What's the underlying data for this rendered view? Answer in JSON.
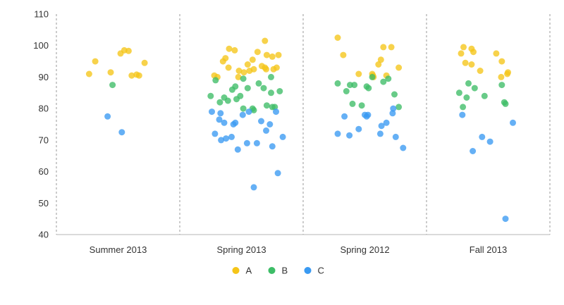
{
  "chart_data": {
    "type": "scatter",
    "title": "",
    "xlabel": "",
    "ylabel": "",
    "categories": [
      "Summer 2013",
      "Spring 2013",
      "Spring 2012",
      "Fall 2013"
    ],
    "ylim": [
      40,
      110
    ],
    "yticks": [
      40,
      50,
      60,
      70,
      80,
      90,
      100,
      110
    ],
    "grid": false,
    "legend": "bottom-center",
    "series": [
      {
        "name": "A",
        "color": "#f5c518",
        "points": [
          {
            "category": "Summer 2013",
            "offset": -0.47,
            "y": 91.0
          },
          {
            "category": "Summer 2013",
            "offset": -0.37,
            "y": 95.0
          },
          {
            "category": "Summer 2013",
            "offset": -0.12,
            "y": 91.5
          },
          {
            "category": "Summer 2013",
            "offset": 0.04,
            "y": 97.5
          },
          {
            "category": "Summer 2013",
            "offset": 0.1,
            "y": 98.5
          },
          {
            "category": "Summer 2013",
            "offset": 0.17,
            "y": 98.3
          },
          {
            "category": "Summer 2013",
            "offset": 0.22,
            "y": 90.5
          },
          {
            "category": "Summer 2013",
            "offset": 0.3,
            "y": 90.8
          },
          {
            "category": "Summer 2013",
            "offset": 0.34,
            "y": 90.5
          },
          {
            "category": "Summer 2013",
            "offset": 0.43,
            "y": 94.5
          },
          {
            "category": "Spring 2013",
            "offset": -0.44,
            "y": 90.5
          },
          {
            "category": "Spring 2013",
            "offset": -0.39,
            "y": 90.0
          },
          {
            "category": "Spring 2013",
            "offset": -0.3,
            "y": 95.0
          },
          {
            "category": "Spring 2013",
            "offset": -0.26,
            "y": 96.0
          },
          {
            "category": "Spring 2013",
            "offset": -0.21,
            "y": 93.0
          },
          {
            "category": "Spring 2013",
            "offset": -0.2,
            "y": 99.0
          },
          {
            "category": "Spring 2013",
            "offset": -0.11,
            "y": 98.5
          },
          {
            "category": "Spring 2013",
            "offset": -0.04,
            "y": 92.0
          },
          {
            "category": "Spring 2013",
            "offset": -0.05,
            "y": 90.0
          },
          {
            "category": "Spring 2013",
            "offset": 0.04,
            "y": 91.5
          },
          {
            "category": "Spring 2013",
            "offset": 0.1,
            "y": 94.0
          },
          {
            "category": "Spring 2013",
            "offset": 0.13,
            "y": 92.0
          },
          {
            "category": "Spring 2013",
            "offset": 0.18,
            "y": 95.5
          },
          {
            "category": "Spring 2013",
            "offset": 0.2,
            "y": 92.5
          },
          {
            "category": "Spring 2013",
            "offset": 0.26,
            "y": 98.0
          },
          {
            "category": "Spring 2013",
            "offset": 0.33,
            "y": 93.5
          },
          {
            "category": "Spring 2013",
            "offset": 0.38,
            "y": 101.5
          },
          {
            "category": "Spring 2013",
            "offset": 0.38,
            "y": 93.0
          },
          {
            "category": "Spring 2013",
            "offset": 0.41,
            "y": 97.0
          },
          {
            "category": "Spring 2013",
            "offset": 0.4,
            "y": 92.5
          },
          {
            "category": "Spring 2013",
            "offset": 0.5,
            "y": 96.5
          },
          {
            "category": "Spring 2013",
            "offset": 0.52,
            "y": 92.5
          },
          {
            "category": "Spring 2013",
            "offset": 0.57,
            "y": 93.0
          },
          {
            "category": "Spring 2013",
            "offset": 0.6,
            "y": 97.0
          },
          {
            "category": "Spring 2012",
            "offset": -0.44,
            "y": 102.5
          },
          {
            "category": "Spring 2012",
            "offset": -0.35,
            "y": 97.0
          },
          {
            "category": "Spring 2012",
            "offset": -0.1,
            "y": 91.0
          },
          {
            "category": "Spring 2012",
            "offset": 0.12,
            "y": 91.0
          },
          {
            "category": "Spring 2012",
            "offset": 0.13,
            "y": 90.5
          },
          {
            "category": "Spring 2012",
            "offset": 0.14,
            "y": 90.0
          },
          {
            "category": "Spring 2012",
            "offset": 0.22,
            "y": 94.0
          },
          {
            "category": "Spring 2012",
            "offset": 0.26,
            "y": 95.5
          },
          {
            "category": "Spring 2012",
            "offset": 0.3,
            "y": 99.5
          },
          {
            "category": "Spring 2012",
            "offset": 0.35,
            "y": 90.5
          },
          {
            "category": "Spring 2012",
            "offset": 0.43,
            "y": 99.5
          },
          {
            "category": "Spring 2012",
            "offset": 0.55,
            "y": 93.0
          },
          {
            "category": "Fall 2013",
            "offset": -0.44,
            "y": 97.5
          },
          {
            "category": "Fall 2013",
            "offset": -0.4,
            "y": 99.5
          },
          {
            "category": "Fall 2013",
            "offset": -0.37,
            "y": 94.5
          },
          {
            "category": "Fall 2013",
            "offset": -0.27,
            "y": 99.0
          },
          {
            "category": "Fall 2013",
            "offset": -0.27,
            "y": 94.0
          },
          {
            "category": "Fall 2013",
            "offset": -0.24,
            "y": 98.0
          },
          {
            "category": "Fall 2013",
            "offset": -0.13,
            "y": 92.0
          },
          {
            "category": "Fall 2013",
            "offset": 0.13,
            "y": 97.5
          },
          {
            "category": "Fall 2013",
            "offset": 0.22,
            "y": 95.0
          },
          {
            "category": "Fall 2013",
            "offset": 0.21,
            "y": 90.0
          },
          {
            "category": "Fall 2013",
            "offset": 0.31,
            "y": 91.0
          },
          {
            "category": "Fall 2013",
            "offset": 0.32,
            "y": 91.5
          }
        ]
      },
      {
        "name": "B",
        "color": "#3dbd67",
        "points": [
          {
            "category": "Summer 2013",
            "offset": -0.09,
            "y": 87.5
          },
          {
            "category": "Spring 2013",
            "offset": -0.5,
            "y": 84.0
          },
          {
            "category": "Spring 2013",
            "offset": -0.42,
            "y": 89.0
          },
          {
            "category": "Spring 2013",
            "offset": -0.35,
            "y": 82.0
          },
          {
            "category": "Spring 2013",
            "offset": -0.28,
            "y": 83.5
          },
          {
            "category": "Spring 2013",
            "offset": -0.22,
            "y": 82.5
          },
          {
            "category": "Spring 2013",
            "offset": -0.15,
            "y": 86.0
          },
          {
            "category": "Spring 2013",
            "offset": -0.1,
            "y": 87.0
          },
          {
            "category": "Spring 2013",
            "offset": -0.08,
            "y": 83.0
          },
          {
            "category": "Spring 2013",
            "offset": -0.02,
            "y": 84.0
          },
          {
            "category": "Spring 2013",
            "offset": 0.03,
            "y": 80.0
          },
          {
            "category": "Spring 2013",
            "offset": 0.03,
            "y": 89.5
          },
          {
            "category": "Spring 2013",
            "offset": 0.1,
            "y": 86.5
          },
          {
            "category": "Spring 2013",
            "offset": 0.18,
            "y": 80.0
          },
          {
            "category": "Spring 2013",
            "offset": 0.2,
            "y": 79.5
          },
          {
            "category": "Spring 2013",
            "offset": 0.28,
            "y": 88.0
          },
          {
            "category": "Spring 2013",
            "offset": 0.36,
            "y": 86.5
          },
          {
            "category": "Spring 2013",
            "offset": 0.41,
            "y": 81.0
          },
          {
            "category": "Spring 2013",
            "offset": 0.48,
            "y": 90.0
          },
          {
            "category": "Spring 2013",
            "offset": 0.48,
            "y": 85.0
          },
          {
            "category": "Spring 2013",
            "offset": 0.5,
            "y": 80.5
          },
          {
            "category": "Spring 2013",
            "offset": 0.54,
            "y": 80.5
          },
          {
            "category": "Spring 2013",
            "offset": 0.62,
            "y": 85.5
          },
          {
            "category": "Spring 2012",
            "offset": -0.44,
            "y": 88.0
          },
          {
            "category": "Spring 2012",
            "offset": -0.3,
            "y": 85.5
          },
          {
            "category": "Spring 2012",
            "offset": -0.24,
            "y": 87.5
          },
          {
            "category": "Spring 2012",
            "offset": -0.2,
            "y": 81.5
          },
          {
            "category": "Spring 2012",
            "offset": -0.17,
            "y": 87.5
          },
          {
            "category": "Spring 2012",
            "offset": -0.05,
            "y": 81.0
          },
          {
            "category": "Spring 2012",
            "offset": 0.03,
            "y": 87.0
          },
          {
            "category": "Spring 2012",
            "offset": 0.06,
            "y": 86.5
          },
          {
            "category": "Spring 2012",
            "offset": 0.12,
            "y": 90.0
          },
          {
            "category": "Spring 2012",
            "offset": 0.3,
            "y": 88.5
          },
          {
            "category": "Spring 2012",
            "offset": 0.38,
            "y": 89.5
          },
          {
            "category": "Spring 2012",
            "offset": 0.48,
            "y": 84.5
          },
          {
            "category": "Spring 2012",
            "offset": 0.55,
            "y": 80.5
          },
          {
            "category": "Fall 2013",
            "offset": -0.47,
            "y": 85.0
          },
          {
            "category": "Fall 2013",
            "offset": -0.41,
            "y": 80.5
          },
          {
            "category": "Fall 2013",
            "offset": -0.35,
            "y": 83.5
          },
          {
            "category": "Fall 2013",
            "offset": -0.32,
            "y": 88.0
          },
          {
            "category": "Fall 2013",
            "offset": -0.22,
            "y": 86.5
          },
          {
            "category": "Fall 2013",
            "offset": -0.06,
            "y": 84.0
          },
          {
            "category": "Fall 2013",
            "offset": 0.22,
            "y": 87.5
          },
          {
            "category": "Fall 2013",
            "offset": 0.26,
            "y": 82.0
          },
          {
            "category": "Fall 2013",
            "offset": 0.28,
            "y": 81.5
          }
        ]
      },
      {
        "name": "C",
        "color": "#3a9af2",
        "points": [
          {
            "category": "Summer 2013",
            "offset": -0.17,
            "y": 77.5
          },
          {
            "category": "Summer 2013",
            "offset": 0.06,
            "y": 72.5
          },
          {
            "category": "Spring 2013",
            "offset": -0.48,
            "y": 79.0
          },
          {
            "category": "Spring 2013",
            "offset": -0.43,
            "y": 72.0
          },
          {
            "category": "Spring 2013",
            "offset": -0.34,
            "y": 78.5
          },
          {
            "category": "Spring 2013",
            "offset": -0.36,
            "y": 76.5
          },
          {
            "category": "Spring 2013",
            "offset": -0.33,
            "y": 70.0
          },
          {
            "category": "Spring 2013",
            "offset": -0.28,
            "y": 75.5
          },
          {
            "category": "Spring 2013",
            "offset": -0.25,
            "y": 70.5
          },
          {
            "category": "Spring 2013",
            "offset": -0.16,
            "y": 71.0
          },
          {
            "category": "Spring 2013",
            "offset": -0.13,
            "y": 75.0
          },
          {
            "category": "Spring 2013",
            "offset": -0.1,
            "y": 75.5
          },
          {
            "category": "Spring 2013",
            "offset": -0.06,
            "y": 67.0
          },
          {
            "category": "Spring 2013",
            "offset": 0.02,
            "y": 78.0
          },
          {
            "category": "Spring 2013",
            "offset": 0.09,
            "y": 69.0
          },
          {
            "category": "Spring 2013",
            "offset": 0.12,
            "y": 79.0
          },
          {
            "category": "Spring 2013",
            "offset": 0.2,
            "y": 55.0
          },
          {
            "category": "Spring 2013",
            "offset": 0.25,
            "y": 69.0
          },
          {
            "category": "Spring 2013",
            "offset": 0.32,
            "y": 76.0
          },
          {
            "category": "Spring 2013",
            "offset": 0.4,
            "y": 73.0
          },
          {
            "category": "Spring 2013",
            "offset": 0.46,
            "y": 75.0
          },
          {
            "category": "Spring 2013",
            "offset": 0.5,
            "y": 68.0
          },
          {
            "category": "Spring 2013",
            "offset": 0.56,
            "y": 79.0
          },
          {
            "category": "Spring 2013",
            "offset": 0.59,
            "y": 59.5
          },
          {
            "category": "Spring 2013",
            "offset": 0.67,
            "y": 71.0
          },
          {
            "category": "Spring 2012",
            "offset": -0.44,
            "y": 72.0
          },
          {
            "category": "Spring 2012",
            "offset": -0.33,
            "y": 77.5
          },
          {
            "category": "Spring 2012",
            "offset": -0.25,
            "y": 71.5
          },
          {
            "category": "Spring 2012",
            "offset": -0.1,
            "y": 73.5
          },
          {
            "category": "Spring 2012",
            "offset": 0.0,
            "y": 78.0
          },
          {
            "category": "Spring 2012",
            "offset": 0.03,
            "y": 77.5
          },
          {
            "category": "Spring 2012",
            "offset": 0.05,
            "y": 78.0
          },
          {
            "category": "Spring 2012",
            "offset": 0.25,
            "y": 72.0
          },
          {
            "category": "Spring 2012",
            "offset": 0.27,
            "y": 74.5
          },
          {
            "category": "Spring 2012",
            "offset": 0.35,
            "y": 75.5
          },
          {
            "category": "Spring 2012",
            "offset": 0.45,
            "y": 78.5
          },
          {
            "category": "Spring 2012",
            "offset": 0.46,
            "y": 80.0
          },
          {
            "category": "Spring 2012",
            "offset": 0.5,
            "y": 71.0
          },
          {
            "category": "Spring 2012",
            "offset": 0.62,
            "y": 67.5
          },
          {
            "category": "Fall 2013",
            "offset": -0.42,
            "y": 78.0
          },
          {
            "category": "Fall 2013",
            "offset": -0.25,
            "y": 66.5
          },
          {
            "category": "Fall 2013",
            "offset": -0.1,
            "y": 71.0
          },
          {
            "category": "Fall 2013",
            "offset": 0.03,
            "y": 69.5
          },
          {
            "category": "Fall 2013",
            "offset": 0.28,
            "y": 45.0
          },
          {
            "category": "Fall 2013",
            "offset": 0.4,
            "y": 75.5
          }
        ]
      }
    ]
  }
}
